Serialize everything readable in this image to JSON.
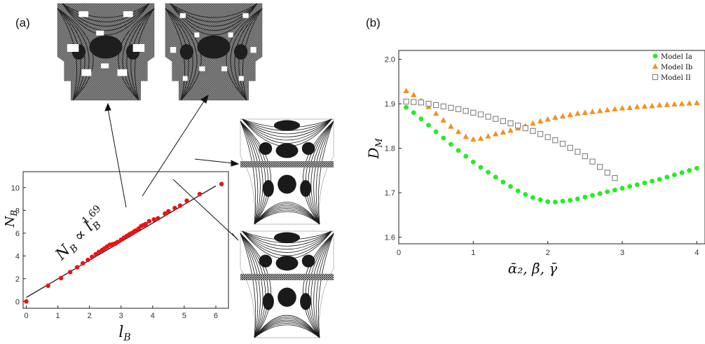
{
  "panels": {
    "a": {
      "label": "(a)"
    },
    "b": {
      "label": "(b)"
    }
  },
  "colors": {
    "model_ia": "#22ee22",
    "model_ib": "#f5901e",
    "model_ii": "#808080",
    "scaling_points": "#ee1111",
    "fractal": "#2a2a2a"
  },
  "chart_data": [
    {
      "id": "a",
      "type": "scatter",
      "title": "",
      "xlabel": "l_B",
      "ylabel": "N_B",
      "xlim": [
        -0.1,
        6.4
      ],
      "ylim": [
        -0.6,
        11.4
      ],
      "xticks": [
        0,
        1,
        2,
        3,
        4,
        5,
        6
      ],
      "yticks": [
        0,
        2,
        4,
        6,
        8,
        10
      ],
      "annotation": {
        "lhs": "N",
        "lhs_sub": "B",
        "rel": "∝",
        "rhs": "l",
        "rhs_sub": "B",
        "exponent": "1.69"
      },
      "fit_line": {
        "x": [
          0,
          6.0
        ],
        "y": [
          0.35,
          10.15
        ]
      },
      "series": [
        {
          "x": [
            0,
            0.69,
            1.1,
            1.39,
            1.61,
            1.79,
            1.95,
            2.08,
            2.2,
            2.3,
            2.4,
            2.48,
            2.56,
            2.64,
            2.71,
            2.77,
            2.83,
            2.89,
            3.0,
            3.09,
            3.18,
            3.26,
            3.33,
            3.4,
            3.43,
            3.46,
            3.5,
            3.56,
            3.64,
            3.71,
            3.78,
            3.89,
            4.04,
            4.17,
            4.39,
            4.5,
            4.7,
            4.87,
            5.08,
            5.49,
            6.18
          ],
          "y": [
            0,
            1.38,
            2.05,
            2.58,
            3.0,
            3.36,
            3.65,
            3.92,
            4.15,
            4.35,
            4.52,
            4.67,
            4.82,
            4.97,
            5.0,
            5.05,
            5.1,
            5.22,
            5.42,
            5.6,
            5.75,
            5.89,
            5.99,
            6.1,
            6.17,
            6.22,
            6.25,
            6.4,
            6.62,
            6.7,
            6.8,
            7.05,
            7.2,
            7.3,
            7.72,
            7.92,
            8.2,
            8.42,
            8.85,
            9.43,
            10.31
          ]
        }
      ]
    },
    {
      "id": "b",
      "type": "scatter",
      "title": "",
      "xlabel": "ᾱ₂, β̄, γ̄",
      "ylabel": "D_M",
      "xlim": [
        0,
        4.1
      ],
      "ylim": [
        1.585,
        2.02
      ],
      "xticks": [
        0,
        1,
        2,
        3,
        4
      ],
      "yticks": [
        1.6,
        1.7,
        1.8,
        1.9,
        2.0
      ],
      "legend": {
        "position": "top-right"
      },
      "series": [
        {
          "name": "Model Ia",
          "marker": "circle",
          "x": [
            0.1,
            0.2,
            0.3,
            0.4,
            0.5,
            0.6,
            0.7,
            0.8,
            0.9,
            1.0,
            1.1,
            1.2,
            1.3,
            1.4,
            1.5,
            1.6,
            1.7,
            1.8,
            1.9,
            2.0,
            2.1,
            2.2,
            2.3,
            2.4,
            2.5,
            2.6,
            2.7,
            2.8,
            2.9,
            3.0,
            3.1,
            3.2,
            3.3,
            3.4,
            3.5,
            3.6,
            3.7,
            3.8,
            3.9,
            4.0,
            4.1
          ],
          "y": [
            1.892,
            1.88,
            1.866,
            1.852,
            1.837,
            1.823,
            1.809,
            1.795,
            1.782,
            1.769,
            1.757,
            1.746,
            1.735,
            1.724,
            1.714,
            1.704,
            1.696,
            1.689,
            1.684,
            1.68,
            1.679,
            1.681,
            1.683,
            1.686,
            1.69,
            1.694,
            1.698,
            1.702,
            1.706,
            1.71,
            1.714,
            1.718,
            1.722,
            1.726,
            1.73,
            1.735,
            1.74,
            1.745,
            1.75,
            1.755,
            1.76
          ]
        },
        {
          "name": "Model Ib",
          "marker": "triangle",
          "x": [
            0.1,
            0.2,
            0.3,
            0.4,
            0.5,
            0.6,
            0.7,
            0.8,
            0.9,
            1.0,
            1.1,
            1.2,
            1.3,
            1.4,
            1.5,
            1.6,
            1.7,
            1.8,
            1.9,
            2.0,
            2.1,
            2.2,
            2.3,
            2.4,
            2.5,
            2.6,
            2.7,
            2.8,
            2.9,
            3.0,
            3.1,
            3.2,
            3.3,
            3.4,
            3.5,
            3.6,
            3.7,
            3.8,
            3.9,
            4.0,
            4.1
          ],
          "y": [
            1.929,
            1.92,
            1.907,
            1.893,
            1.878,
            1.863,
            1.849,
            1.837,
            1.826,
            1.82,
            1.822,
            1.827,
            1.832,
            1.836,
            1.84,
            1.845,
            1.85,
            1.856,
            1.861,
            1.865,
            1.869,
            1.872,
            1.875,
            1.878,
            1.88,
            1.882,
            1.884,
            1.886,
            1.888,
            1.89,
            1.891,
            1.893,
            1.894,
            1.895,
            1.897,
            1.898,
            1.899,
            1.9,
            1.901,
            1.902,
            1.903
          ]
        },
        {
          "name": "Model II",
          "marker": "square",
          "x": [
            0.1,
            0.2,
            0.3,
            0.4,
            0.5,
            0.6,
            0.7,
            0.8,
            0.9,
            1.0,
            1.1,
            1.2,
            1.3,
            1.4,
            1.5,
            1.6,
            1.7,
            1.8,
            1.9,
            2.0,
            2.1,
            2.2,
            2.3,
            2.4,
            2.5,
            2.6,
            2.7,
            2.8,
            2.9
          ],
          "y": [
            1.905,
            1.904,
            1.903,
            1.9,
            1.897,
            1.894,
            1.891,
            1.888,
            1.884,
            1.88,
            1.876,
            1.871,
            1.866,
            1.861,
            1.856,
            1.851,
            1.845,
            1.839,
            1.832,
            1.825,
            1.818,
            1.81,
            1.801,
            1.792,
            1.782,
            1.77,
            1.758,
            1.745,
            1.733
          ]
        }
      ]
    }
  ]
}
